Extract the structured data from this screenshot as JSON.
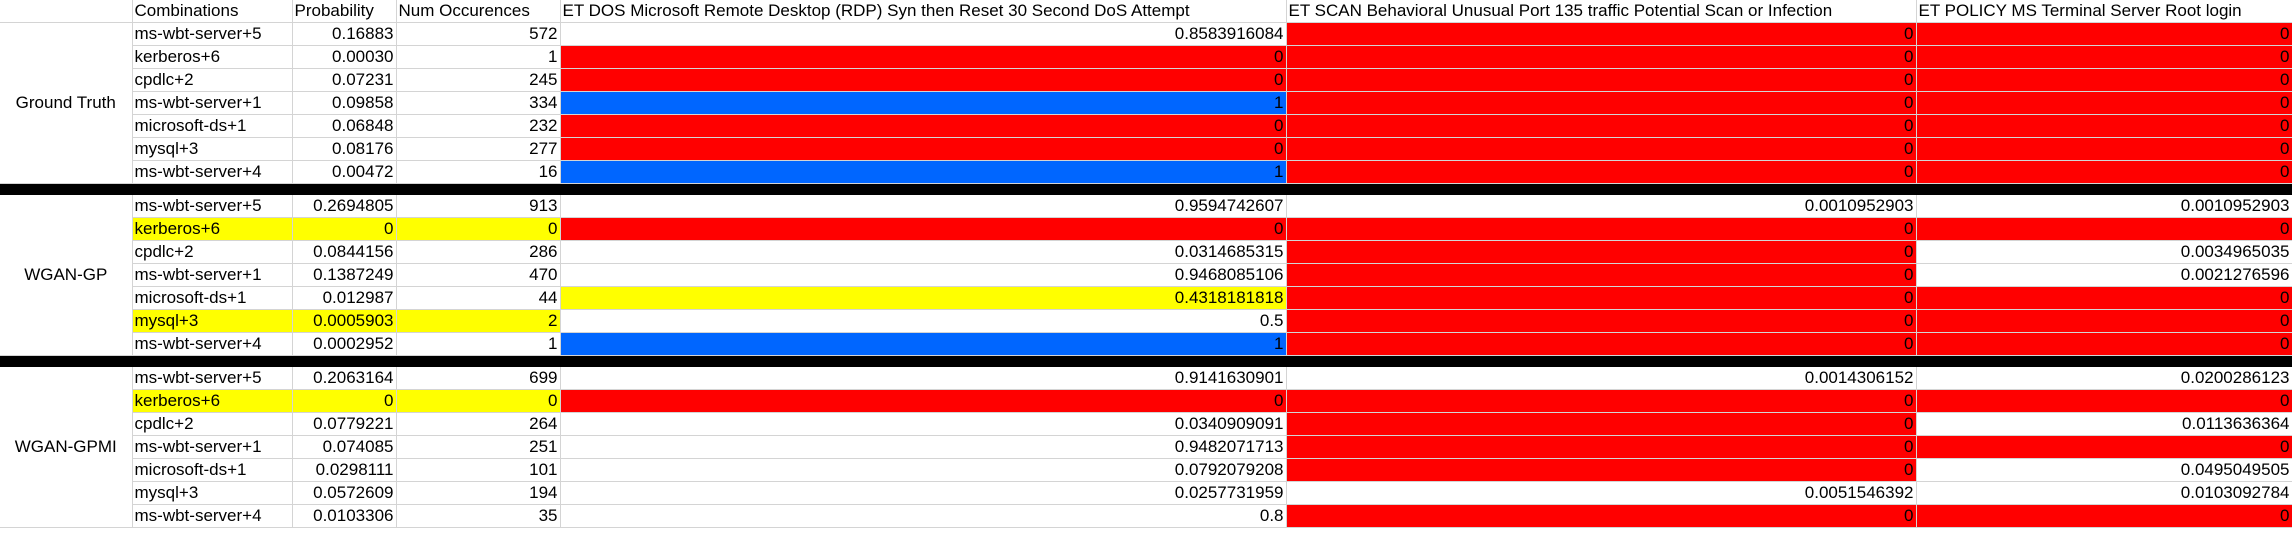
{
  "headers": [
    "",
    "Combinations",
    "Probability",
    "Num Occurences",
    "ET DOS Microsoft Remote Desktop (RDP) Syn then Reset 30 Second DoS Attempt",
    "ET SCAN Behavioral Unusual Port 135 traffic Potential Scan or Infection",
    "ET POLICY MS Terminal Server Root login"
  ],
  "colors": {
    "red": "#ff0000",
    "blue": "#0066ff",
    "yellow": "#ffff00",
    "separator": "#000000"
  },
  "groups": [
    {
      "name": "Ground Truth",
      "rows": [
        {
          "combo": "ms-wbt-server+5",
          "prob": "0.16883",
          "num": "572",
          "v1": "0.8583916084",
          "v2": "0",
          "v3": "0",
          "bg": [
            "",
            "",
            "",
            "",
            "red",
            "red"
          ]
        },
        {
          "combo": "kerberos+6",
          "prob": "0.00030",
          "num": "1",
          "v1": "0",
          "v2": "0",
          "v3": "0",
          "bg": [
            "",
            "",
            "",
            "red",
            "red",
            "red"
          ]
        },
        {
          "combo": "cpdlc+2",
          "prob": "0.07231",
          "num": "245",
          "v1": "0",
          "v2": "0",
          "v3": "0",
          "bg": [
            "",
            "",
            "",
            "red",
            "red",
            "red"
          ]
        },
        {
          "combo": "ms-wbt-server+1",
          "prob": "0.09858",
          "num": "334",
          "v1": "1",
          "v2": "0",
          "v3": "0",
          "bg": [
            "",
            "",
            "",
            "blue",
            "red",
            "red"
          ]
        },
        {
          "combo": "microsoft-ds+1",
          "prob": "0.06848",
          "num": "232",
          "v1": "0",
          "v2": "0",
          "v3": "0",
          "bg": [
            "",
            "",
            "",
            "red",
            "red",
            "red"
          ]
        },
        {
          "combo": "mysql+3",
          "prob": "0.08176",
          "num": "277",
          "v1": "0",
          "v2": "0",
          "v3": "0",
          "bg": [
            "",
            "",
            "",
            "red",
            "red",
            "red"
          ]
        },
        {
          "combo": "ms-wbt-server+4",
          "prob": "0.00472",
          "num": "16",
          "v1": "1",
          "v2": "0",
          "v3": "0",
          "bg": [
            "",
            "",
            "",
            "blue",
            "red",
            "red"
          ]
        }
      ]
    },
    {
      "name": "WGAN-GP",
      "rows": [
        {
          "combo": "ms-wbt-server+5",
          "prob": "0.2694805",
          "num": "913",
          "v1": "0.9594742607",
          "v2": "0.0010952903",
          "v3": "0.0010952903",
          "bg": [
            "",
            "",
            "",
            "",
            "",
            ""
          ]
        },
        {
          "combo": "kerberos+6",
          "prob": "0",
          "num": "0",
          "v1": "0",
          "v2": "0",
          "v3": "0",
          "bg": [
            "yellow",
            "yellow",
            "yellow",
            "red",
            "red",
            "red"
          ]
        },
        {
          "combo": "cpdlc+2",
          "prob": "0.0844156",
          "num": "286",
          "v1": "0.0314685315",
          "v2": "0",
          "v3": "0.0034965035",
          "bg": [
            "",
            "",
            "",
            "",
            "red",
            ""
          ]
        },
        {
          "combo": "ms-wbt-server+1",
          "prob": "0.1387249",
          "num": "470",
          "v1": "0.9468085106",
          "v2": "0",
          "v3": "0.0021276596",
          "bg": [
            "",
            "",
            "",
            "",
            "red",
            ""
          ]
        },
        {
          "combo": "microsoft-ds+1",
          "prob": "0.012987",
          "num": "44",
          "v1": "0.4318181818",
          "v2": "0",
          "v3": "0",
          "bg": [
            "",
            "",
            "",
            "yellow",
            "red",
            "red"
          ]
        },
        {
          "combo": "mysql+3",
          "prob": "0.0005903",
          "num": "2",
          "v1": "0.5",
          "v2": "0",
          "v3": "0",
          "bg": [
            "yellow",
            "yellow",
            "yellow",
            "",
            "red",
            "red"
          ]
        },
        {
          "combo": "ms-wbt-server+4",
          "prob": "0.0002952",
          "num": "1",
          "v1": "1",
          "v2": "0",
          "v3": "0",
          "bg": [
            "",
            "",
            "",
            "blue",
            "red",
            "red"
          ]
        }
      ]
    },
    {
      "name": "WGAN-GPMI",
      "rows": [
        {
          "combo": "ms-wbt-server+5",
          "prob": "0.2063164",
          "num": "699",
          "v1": "0.9141630901",
          "v2": "0.0014306152",
          "v3": "0.0200286123",
          "bg": [
            "",
            "",
            "",
            "",
            "",
            ""
          ]
        },
        {
          "combo": "kerberos+6",
          "prob": "0",
          "num": "0",
          "v1": "0",
          "v2": "0",
          "v3": "0",
          "bg": [
            "yellow",
            "yellow",
            "yellow",
            "red",
            "red",
            "red"
          ]
        },
        {
          "combo": "cpdlc+2",
          "prob": "0.0779221",
          "num": "264",
          "v1": "0.0340909091",
          "v2": "0",
          "v3": "0.0113636364",
          "bg": [
            "",
            "",
            "",
            "",
            "red",
            ""
          ]
        },
        {
          "combo": "ms-wbt-server+1",
          "prob": "0.074085",
          "num": "251",
          "v1": "0.9482071713",
          "v2": "0",
          "v3": "0",
          "bg": [
            "",
            "",
            "",
            "",
            "red",
            "red"
          ]
        },
        {
          "combo": "microsoft-ds+1",
          "prob": "0.0298111",
          "num": "101",
          "v1": "0.0792079208",
          "v2": "0",
          "v3": "0.0495049505",
          "bg": [
            "",
            "",
            "",
            "",
            "red",
            ""
          ]
        },
        {
          "combo": "mysql+3",
          "prob": "0.0572609",
          "num": "194",
          "v1": "0.0257731959",
          "v2": "0.0051546392",
          "v3": "0.0103092784",
          "bg": [
            "",
            "",
            "",
            "",
            "",
            ""
          ]
        },
        {
          "combo": "ms-wbt-server+4",
          "prob": "0.0103306",
          "num": "35",
          "v1": "0.8",
          "v2": "0",
          "v3": "0",
          "bg": [
            "",
            "",
            "",
            "",
            "red",
            "red"
          ]
        }
      ]
    }
  ]
}
